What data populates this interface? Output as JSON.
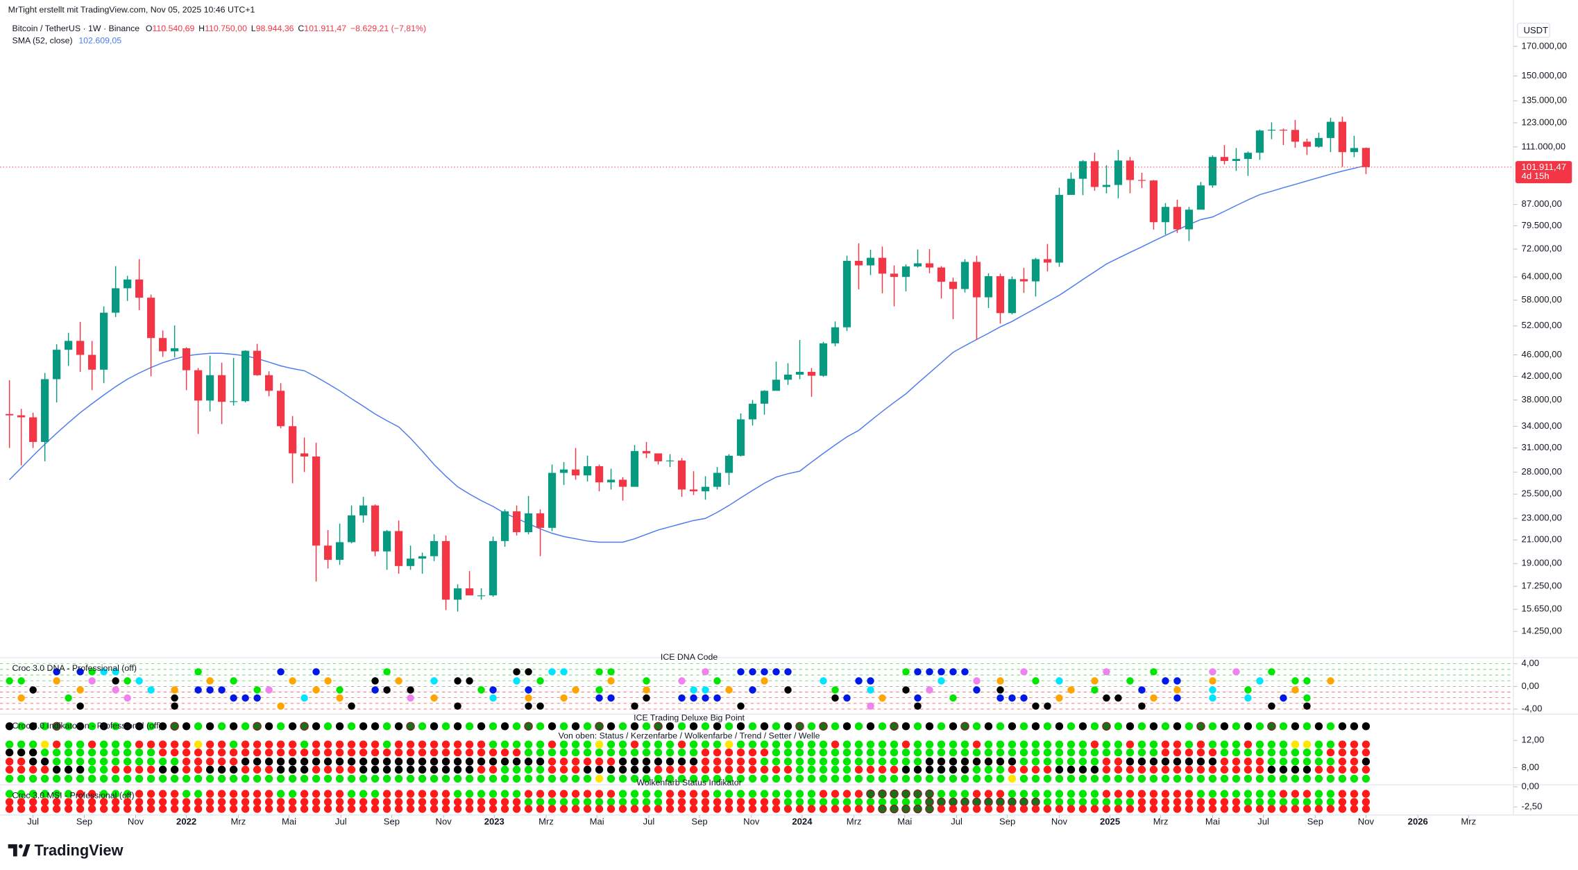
{
  "header": {
    "author": "MrTight erstellt mit TradingView.com, Nov 05, 2025 10:46 UTC+1",
    "symbol": "Bitcoin / TetherUS · 1W · Binance",
    "ohlc": [
      {
        "key": "O",
        "value": "110.540,69"
      },
      {
        "key": "H",
        "value": "110.750,00"
      },
      {
        "key": "L",
        "value": "98.944,36"
      },
      {
        "key": "C",
        "value": "101.911,47"
      }
    ],
    "change": "−8.629,21 (−7,81%)",
    "sma_value": "102.609,05"
  },
  "chart_data": {
    "type": "candlestick",
    "currency": "USDT",
    "log_scale": true,
    "up_color": "#089981",
    "down_color": "#f23645",
    "open": [
      35800,
      35600,
      35300,
      31800,
      41500,
      47000,
      48800,
      46000,
      43200,
      55000,
      61000,
      63300,
      58600,
      49400,
      46700,
      47300,
      43100,
      37900,
      42200,
      37700,
      37800,
      46800,
      42200,
      39500,
      34000,
      30300,
      29900,
      20500,
      19300,
      20800,
      23300,
      24300,
      20000,
      21800,
      18800,
      19400,
      19600,
      20900,
      16300,
      17100,
      16600,
      16600,
      20900,
      23700,
      21700,
      23500,
      22100,
      27900,
      28300,
      27600,
      28700,
      26800,
      27100,
      26300,
      30600,
      30300,
      29300,
      29400,
      26000,
      25800,
      26300,
      27900,
      30000,
      35000,
      37400,
      39500,
      41400,
      42300,
      42800,
      42100,
      48300,
      51700,
      68500,
      67200,
      69400,
      64900,
      64000,
      66900,
      67800,
      66600,
      62700,
      60800,
      68200,
      58700,
      64200,
      54900,
      63400,
      62800,
      69000,
      68000,
      90600,
      97000,
      104500,
      93700,
      94500,
      104800,
      96500,
      96300,
      80700,
      86100,
      78300,
      85100,
      94300,
      106400,
      104600,
      105500,
      108300,
      119000,
      119400,
      119300,
      113500,
      111100,
      115300,
      123500,
      108600,
      110540.69
    ],
    "high": [
      41300,
      36600,
      36000,
      42600,
      48100,
      50500,
      52900,
      48800,
      56500,
      67000,
      64300,
      69000,
      59400,
      51000,
      52100,
      47500,
      43500,
      45800,
      44500,
      45400,
      46900,
      48200,
      42900,
      40800,
      35500,
      32400,
      31700,
      21900,
      22500,
      24300,
      25200,
      24400,
      21900,
      22800,
      20500,
      19900,
      21500,
      21400,
      17400,
      18400,
      17100,
      21300,
      23900,
      24300,
      25300,
      23900,
      28900,
      29200,
      31000,
      30000,
      28900,
      28400,
      27400,
      31400,
      31800,
      30300,
      30200,
      29700,
      28100,
      27500,
      28600,
      30200,
      35900,
      38000,
      39600,
      44700,
      44400,
      49000,
      43500,
      48600,
      53000,
      70000,
      73800,
      71800,
      72800,
      67200,
      67500,
      71900,
      72000,
      67000,
      63800,
      69000,
      70000,
      65000,
      64900,
      64100,
      66500,
      69400,
      73600,
      93400,
      99600,
      105000,
      108300,
      102700,
      109600,
      106400,
      99500,
      96500,
      87500,
      88800,
      86100,
      95700,
      107100,
      111900,
      110500,
      108900,
      119500,
      123200,
      120000,
      124500,
      115000,
      117900,
      125600,
      126200,
      116400,
      110750
    ],
    "low": [
      31000,
      28800,
      31000,
      29300,
      37600,
      43900,
      42800,
      39600,
      40800,
      54000,
      57800,
      55600,
      42000,
      45600,
      45500,
      39600,
      32900,
      36200,
      34300,
      37100,
      37600,
      42100,
      38600,
      33700,
      26700,
      28000,
      17600,
      18600,
      18900,
      20700,
      22600,
      19600,
      18500,
      18200,
      18500,
      18200,
      19200,
      15600,
      15500,
      16600,
      16300,
      16500,
      20400,
      21400,
      21500,
      19600,
      21800,
      26500,
      27100,
      26900,
      25800,
      26000,
      24800,
      26300,
      29700,
      28900,
      28600,
      25200,
      25400,
      24900,
      26000,
      26500,
      29900,
      34100,
      35700,
      39700,
      40500,
      41500,
      38500,
      41900,
      47700,
      50900,
      60700,
      64500,
      59700,
      56500,
      60200,
      66600,
      65000,
      58400,
      53500,
      59900,
      49000,
      56100,
      52500,
      54600,
      59800,
      58900,
      65500,
      66800,
      90800,
      90500,
      92200,
      91200,
      89300,
      91200,
      93300,
      78200,
      76600,
      77100,
      74500,
      85100,
      93400,
      103100,
      100300,
      98200,
      105100,
      114700,
      111900,
      110600,
      107300,
      110600,
      108600,
      102000,
      106300,
      98944.36
    ],
    "close": [
      35600,
      35300,
      31800,
      41500,
      47000,
      48800,
      46000,
      43200,
      55000,
      61000,
      63300,
      58600,
      49400,
      46700,
      47300,
      43100,
      37900,
      42200,
      37700,
      37800,
      46800,
      42200,
      39500,
      34000,
      30300,
      29900,
      20500,
      19300,
      20800,
      23300,
      24300,
      20000,
      21800,
      18800,
      19400,
      19600,
      20900,
      16300,
      17100,
      16600,
      16600,
      20900,
      23700,
      21700,
      23500,
      22100,
      27900,
      28300,
      27600,
      28700,
      26800,
      27100,
      26300,
      30600,
      30300,
      29300,
      29400,
      26000,
      25800,
      26300,
      27900,
      30000,
      35000,
      37400,
      39500,
      41400,
      42300,
      42800,
      42100,
      48300,
      51700,
      68500,
      67200,
      69400,
      64900,
      64000,
      66900,
      67800,
      66600,
      62700,
      60800,
      68200,
      58700,
      64200,
      54900,
      63400,
      62800,
      69000,
      68000,
      90600,
      97000,
      104500,
      93700,
      94500,
      104800,
      96500,
      96300,
      80700,
      86100,
      78300,
      85100,
      94300,
      106400,
      104600,
      105500,
      108300,
      119000,
      119400,
      119300,
      113500,
      111100,
      115300,
      123500,
      108600,
      110500,
      101911.47
    ],
    "sma": {
      "name": "SMA (52, close)",
      "color": "#4a7bf0",
      "values": [
        27100,
        28500,
        30000,
        31500,
        33000,
        34500,
        36000,
        37400,
        38800,
        40200,
        41500,
        42600,
        43600,
        44500,
        45200,
        45800,
        46100,
        46300,
        46300,
        46100,
        45800,
        45300,
        44600,
        43900,
        43400,
        43000,
        41900,
        40700,
        39500,
        38200,
        37000,
        35800,
        34800,
        33900,
        32300,
        30600,
        28900,
        27500,
        26300,
        25500,
        24800,
        24200,
        23500,
        23000,
        22500,
        22000,
        21600,
        21300,
        21100,
        20900,
        20800,
        20800,
        20800,
        21100,
        21500,
        21900,
        22200,
        22500,
        22800,
        23000,
        23600,
        24300,
        25100,
        25900,
        26700,
        27400,
        27800,
        28100,
        29200,
        30300,
        31400,
        32500,
        33400,
        34800,
        36200,
        37600,
        39000,
        40800,
        42600,
        44500,
        46500,
        47800,
        49100,
        50400,
        51800,
        53000,
        54500,
        56000,
        57600,
        59200,
        61200,
        63300,
        65400,
        67600,
        69300,
        71000,
        72700,
        74500,
        76300,
        78100,
        79900,
        81600,
        82500,
        84500,
        86600,
        88700,
        90700,
        92000,
        93400,
        94700,
        96100,
        97500,
        98900,
        100200,
        101400,
        102609.05
      ]
    },
    "last_price": {
      "value": 101911.47,
      "label": "101.911,47",
      "countdown": "4d 15h"
    },
    "ylim": [
      12750,
      206900
    ],
    "yticks": [
      {
        "value": 170000,
        "label": "170.000,00"
      },
      {
        "value": 150000,
        "label": "150.000,00"
      },
      {
        "value": 135000,
        "label": "135.000,00"
      },
      {
        "value": 123000,
        "label": "123.000,00"
      },
      {
        "value": 111000,
        "label": "111.000,00"
      },
      {
        "value": 87000,
        "label": "87.000,00"
      },
      {
        "value": 79500,
        "label": "79.500,00"
      },
      {
        "value": 72000,
        "label": "72.000,00"
      },
      {
        "value": 64000,
        "label": "64.000,00"
      },
      {
        "value": 58000,
        "label": "58.000,00"
      },
      {
        "value": 52000,
        "label": "52.000,00"
      },
      {
        "value": 46000,
        "label": "46.000,00"
      },
      {
        "value": 42000,
        "label": "42.000,00"
      },
      {
        "value": 38000,
        "label": "38.000,00"
      },
      {
        "value": 34000,
        "label": "34.000,00"
      },
      {
        "value": 31000,
        "label": "31.000,00"
      },
      {
        "value": 28000,
        "label": "28.000,00"
      },
      {
        "value": 25500,
        "label": "25.500,00"
      },
      {
        "value": 23000,
        "label": "23.000,00"
      },
      {
        "value": 21000,
        "label": "21.000,00"
      },
      {
        "value": 19000,
        "label": "19.000,00"
      },
      {
        "value": 17250,
        "label": "17.250,00"
      },
      {
        "value": 15650,
        "label": "15.650,00"
      },
      {
        "value": 14250,
        "label": "14.250,00"
      }
    ],
    "xlim": [
      -0.8,
      127.5
    ],
    "xticks": [
      {
        "value": 2,
        "label": "Jul"
      },
      {
        "value": 6.35,
        "label": "Sep"
      },
      {
        "value": 10.7,
        "label": "Nov"
      },
      {
        "value": 15,
        "label": "2022"
      },
      {
        "value": 19.4,
        "label": "Mrz"
      },
      {
        "value": 23.7,
        "label": "Mai"
      },
      {
        "value": 28.1,
        "label": "Jul"
      },
      {
        "value": 32.4,
        "label": "Sep"
      },
      {
        "value": 36.8,
        "label": "Nov"
      },
      {
        "value": 41.1,
        "label": "2023"
      },
      {
        "value": 45.5,
        "label": "Mrz"
      },
      {
        "value": 49.8,
        "label": "Mai"
      },
      {
        "value": 54.2,
        "label": "Jul"
      },
      {
        "value": 58.5,
        "label": "Sep"
      },
      {
        "value": 62.9,
        "label": "Nov"
      },
      {
        "value": 67.2,
        "label": "2024"
      },
      {
        "value": 71.6,
        "label": "Mrz"
      },
      {
        "value": 75.9,
        "label": "Mai"
      },
      {
        "value": 80.3,
        "label": "Jul"
      },
      {
        "value": 84.6,
        "label": "Sep"
      },
      {
        "value": 89,
        "label": "Nov"
      },
      {
        "value": 93.3,
        "label": "2025"
      },
      {
        "value": 97.6,
        "label": "Mrz"
      },
      {
        "value": 102,
        "label": "Mai"
      },
      {
        "value": 106.3,
        "label": "Jul"
      },
      {
        "value": 110.7,
        "label": "Sep"
      },
      {
        "value": 115,
        "label": "Nov"
      },
      {
        "value": 119.4,
        "label": "2026"
      },
      {
        "value": 123.7,
        "label": "Mrz"
      }
    ]
  },
  "palette": {
    "g": "#00e600",
    "r": "#ff1a1a",
    "k": "#000000",
    "y": "#ffe600",
    "d": "#1b6e1b",
    "b": "#0018e6",
    "o": "#ffa500",
    "c": "#00e5ff",
    "p": "#ee82ee"
  },
  "panels": [
    {
      "title": "ICE DNA Code",
      "label": "Croc 3.0 DNA - Professional (off)",
      "ylim": [
        -4.9,
        5.07
      ],
      "yticks": [
        {
          "value": 4,
          "label": "4,00"
        },
        {
          "value": 0,
          "label": "0,00"
        },
        {
          "value": -4,
          "label": "-4,00"
        }
      ],
      "rows": [
        "....b.bgcc......g......b..b.....g..........kk.cc..gg.......p..bbbbb.........gbbbbb....p......p...g....p.p..g...",
        "gg..o..p.kgc.....o.g....o..o...k.o..c.kk...c.g.....o..g..p..g...o....c..bb.....c..p.o..g.c..o..g..bb..o...c..gg.o",
        "..k...o..p..c.o.bbb..gp...o.g..bk.k.....gb..b...o.g...o...cc.o.b..k...g..c..k.p...b.k.....o.g...b..o..c..g...o..",
        ".o...g....p...k....bbb...c..o.....p.o....c..o..o..bb..k..bbbb.........kb..o..b..g...bbb..o...kk..o.b..c..c..b.g",
        "......k.......k........o.....k........k.....kk.......k........k..........p...k.........kk.......k..........k..k."
      ]
    },
    {
      "title": "ICE Trading Deluxe Big Point",
      "subtitle": "Von oben: Status / Kerzenfarbe / Wolkenfarbe / Trend / Setter / Welle",
      "label": "Croc 3.0 Indikatoren - Professional (off)",
      "ylim": [
        5.48,
        15.85
      ],
      "yticks": [
        {
          "value": 12,
          "label": "12,00"
        },
        {
          "value": 8,
          "label": "8,00"
        }
      ],
      "rows": [
        "kgkgdgkgkgkkgkdkgkgkgdkgkdkgkgkkgkdgkgkgkgkgdgkgkgdkgkgdkgkgkgkgkgkdgdgkgkgdkgkgkdgkgkgkgkgkgdgkgkgkgdgkgkgdgkgkgkkk",
        "gggyrggrgggrrrrryrrgrrrrrgrrrrrrgrrrrrrrrgggggrgggyggrgggrgggyggggggggrgggggrgggggrgggggggggrggrggrrgrgggrgggyyggrrrr",
        "kkkggggggggggrrrrrrrrrrrrrrrrrrrrrrrrrrrrrrrgggggggggggggggrrrrrrgggggggggggggggggggggggggggggggggrrrrrgggggggggrrrrr",
        "rrkkgggggggggggrrrrrkkkkkkkkkkkkkkkkkkkkkkkkkkrrrrrrkkkkkkkrrrrrggggggggggggggkkkkkkkkgggggggrrkkkkkkkkrrrrggggggrrk",
        "rrrrkkkggrrrrkkrrkkkrrrkkkrrrrkkkkkkkkkkrrggggrrrkkkkkkrrrrrrrrrrrrgggggrrrrkkkkkkgggrrrrkkkkrrrrrrrrrrrrrrkkkkrrrrr",
        "ggggggggggggggggggggggggggggggggggggggggggggggggggyggggggggggggggggggggggggggggggggggygggggggggggggggggggggggggggggg"
      ]
    },
    {
      "title": "Wolkenfarb Status Indikator",
      "label": "Croc 3.0 MSI - Professional (off)",
      "ylim": [
        -3.5,
        0.25
      ],
      "yticks": [
        {
          "value": 0,
          "label": "0,00"
        },
        {
          "value": -2.5,
          "label": "-2,50"
        }
      ],
      "rows": [
        "ggggggrrgggrrrrggrrrrrrggrrrrgggrrrrrrggggggrrrrrrrrggggrrrrgggggggggrrrrddddddgggrrrggggggggrrrrrrrrgggggggrrrggrrr",
        "rrrrrrrrrrrrrrrrrrrrrrrrrrrrrrrrrrrrrrrrrrrrggggggggggggrrrrrrrrrrggggggggggggddddddddddggggggggrrrrrrrrrggggggggrrr",
        "rrrrrrrrrrrrrrrrrrrrrrrrrrrrrrrrrrrrrrrrrrrrrrrrrrrrrrrrrrrrrrrrrrrrrrrrrrdddddrrrrrrrrrrrrrrrrrrrrrrrrrrrrrrrrrrrrr"
      ]
    }
  ],
  "footer": "TradingView"
}
